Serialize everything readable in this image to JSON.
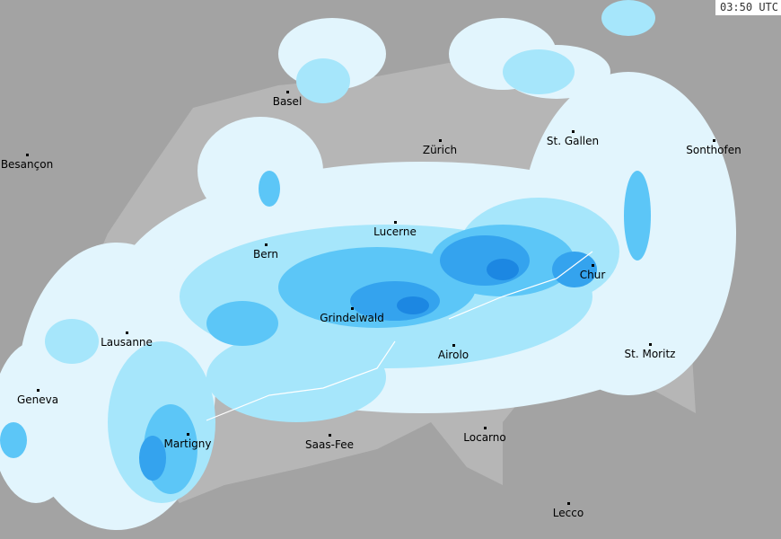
{
  "timestamp": "03:50 UTC",
  "colors": {
    "background": "#a3a3a3",
    "country": "#b6b6b6",
    "border": "#ffffff",
    "levels": [
      "#e2f5fd",
      "#a6e6fb",
      "#5cc6f7",
      "#34a3ee",
      "#1c87e2"
    ]
  },
  "cities": [
    {
      "name": "Basel"
    },
    {
      "name": "Besançon"
    },
    {
      "name": "Zürich"
    },
    {
      "name": "St. Gallen"
    },
    {
      "name": "Sonthofen"
    },
    {
      "name": "Bern"
    },
    {
      "name": "Lucerne"
    },
    {
      "name": "Chur"
    },
    {
      "name": "Lausanne"
    },
    {
      "name": "Grindelwald"
    },
    {
      "name": "Airolo"
    },
    {
      "name": "St. Moritz"
    },
    {
      "name": "Geneva"
    },
    {
      "name": "Martigny"
    },
    {
      "name": "Saas-Fee"
    },
    {
      "name": "Locarno"
    },
    {
      "name": "Lecco"
    }
  ]
}
